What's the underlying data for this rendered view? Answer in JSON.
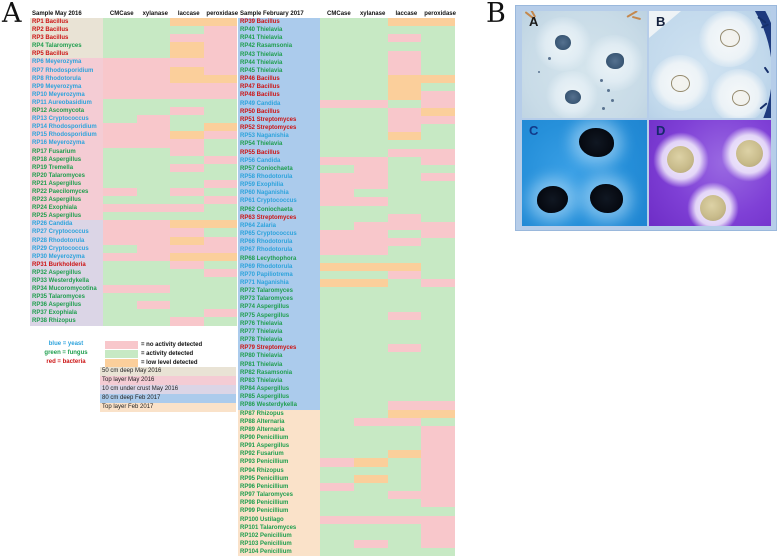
{
  "panel_a": {
    "label": "A",
    "colors": {
      "activity": "#c7e9c4",
      "no_activity": "#f8c7cb",
      "low_level": "#fbcf9b",
      "deep50_may": "#e9e3d5",
      "top_may": "#f4ccd4",
      "crust_may": "#dbd5e6",
      "deep80_feb": "#abcbec",
      "top_feb": "#fae2c9",
      "yeast": "#2da3dc",
      "fungus": "#1f9e4e",
      "bacteria": "#cc1414"
    },
    "tables": [
      {
        "header": {
          "sample": "Sample May 2016",
          "cols": [
            "CMCase",
            "xylanase",
            "laccase",
            "peroxidase"
          ]
        },
        "rows": [
          {
            "label": "RP1 Bacillus",
            "org": "bacteria",
            "layer": "deep50_may",
            "cells": "AALL"
          },
          {
            "label": "RP2 Bacillus",
            "org": "bacteria",
            "layer": "deep50_may",
            "cells": "AAAN"
          },
          {
            "label": "RP3 Bacillus",
            "org": "bacteria",
            "layer": "deep50_may",
            "cells": "AANN"
          },
          {
            "label": "RP4 Talaromyces",
            "org": "fungus",
            "layer": "deep50_may",
            "cells": "AALN"
          },
          {
            "label": "RP5 Bacillus",
            "org": "bacteria",
            "layer": "deep50_may",
            "cells": "AALN"
          },
          {
            "label": "RP6 Meyerozyma",
            "org": "yeast",
            "layer": "top_may",
            "cells": "NNNN"
          },
          {
            "label": "RP7 Rhodosporidium",
            "org": "yeast",
            "layer": "top_may",
            "cells": "NNLN"
          },
          {
            "label": "RP8 Rhodotorula",
            "org": "yeast",
            "layer": "top_may",
            "cells": "NNLL"
          },
          {
            "label": "RP9 Meyerozyma",
            "org": "yeast",
            "layer": "top_may",
            "cells": "NNNN"
          },
          {
            "label": "RP10 Meyerozyma",
            "org": "yeast",
            "layer": "top_may",
            "cells": "NNNN"
          },
          {
            "label": "RP11 Aureobasidium",
            "org": "yeast",
            "layer": "top_may",
            "cells": "AAAA"
          },
          {
            "label": "RP12 Ascomycota",
            "org": "fungus",
            "layer": "top_may",
            "cells": "AANA"
          },
          {
            "label": "RP13 Cryptococcus",
            "org": "yeast",
            "layer": "top_may",
            "cells": "ANAA"
          },
          {
            "label": "RP14 Rhodosporidium",
            "org": "yeast",
            "layer": "top_may",
            "cells": "NNAL"
          },
          {
            "label": "RP15 Rhodosporidium",
            "org": "yeast",
            "layer": "top_may",
            "cells": "NNLN"
          },
          {
            "label": "RP16 Meyerozyma",
            "org": "yeast",
            "layer": "top_may",
            "cells": "NNNA"
          },
          {
            "label": "RP17 Fusarium",
            "org": "fungus",
            "layer": "top_may",
            "cells": "AANA"
          },
          {
            "label": "RP18 Aspergillus",
            "org": "fungus",
            "layer": "top_may",
            "cells": "AAAN"
          },
          {
            "label": "RP19 Tremella",
            "org": "fungus",
            "layer": "top_may",
            "cells": "AANA"
          },
          {
            "label": "RP20 Talaromyces",
            "org": "fungus",
            "layer": "top_may",
            "cells": "AAAA"
          },
          {
            "label": "RP21 Aspergillus",
            "org": "fungus",
            "layer": "top_may",
            "cells": "AAAN"
          },
          {
            "label": "RP22 Paecilomyces",
            "org": "fungus",
            "layer": "top_may",
            "cells": "NANA"
          },
          {
            "label": "RP23 Aspergillus",
            "org": "fungus",
            "layer": "top_may",
            "cells": "AAAN"
          },
          {
            "label": "RP24 Exophiala",
            "org": "fungus",
            "layer": "top_may",
            "cells": "NNNA"
          },
          {
            "label": "RP25 Aspergillus",
            "org": "fungus",
            "layer": "top_may",
            "cells": "AAAA"
          },
          {
            "label": "RP26 Candida",
            "org": "yeast",
            "layer": "crust_may",
            "cells": "NNLL"
          },
          {
            "label": "RP27 Cryptococcus",
            "org": "yeast",
            "layer": "crust_may",
            "cells": "NNNA"
          },
          {
            "label": "RP28 Rhodotorula",
            "org": "yeast",
            "layer": "crust_may",
            "cells": "NNLN"
          },
          {
            "label": "RP29 Cryptococcus",
            "org": "yeast",
            "layer": "crust_may",
            "cells": "ANNN"
          },
          {
            "label": "RP30 Meyerozyma",
            "org": "yeast",
            "layer": "crust_may",
            "cells": "NNLL"
          },
          {
            "label": "RP31 Burkholderia",
            "org": "bacteria",
            "layer": "crust_may",
            "cells": "AANA"
          },
          {
            "label": "RP32 Aspergillus",
            "org": "fungus",
            "layer": "crust_may",
            "cells": "AAAN"
          },
          {
            "label": "RP33 Westerdykella",
            "org": "fungus",
            "layer": "crust_may",
            "cells": "AAAA"
          },
          {
            "label": "RP34 Mucoromycotina",
            "org": "fungus",
            "layer": "crust_may",
            "cells": "NNAA"
          },
          {
            "label": "RP35 Talaromyces",
            "org": "fungus",
            "layer": "crust_may",
            "cells": "AAAA"
          },
          {
            "label": "RP36 Aspergillus",
            "org": "fungus",
            "layer": "crust_may",
            "cells": "ANAA"
          },
          {
            "label": "RP37 Exophiala",
            "org": "fungus",
            "layer": "crust_may",
            "cells": "AAAN"
          },
          {
            "label": "RP38 Rhizopus",
            "org": "fungus",
            "layer": "crust_may",
            "cells": "AANA"
          }
        ]
      },
      {
        "header": {
          "sample": "Sample February 2017",
          "cols": [
            "CMCase",
            "xylanase",
            "laccase",
            "peroxidase"
          ]
        },
        "rows": [
          {
            "label": "RP39 Bacillus",
            "org": "bacteria",
            "layer": "deep80_feb",
            "cells": "AALL"
          },
          {
            "label": "RP40 Thielavia",
            "org": "fungus",
            "layer": "deep80_feb",
            "cells": "AAAA"
          },
          {
            "label": "RP41 Thielavia",
            "org": "fungus",
            "layer": "deep80_feb",
            "cells": "AANA"
          },
          {
            "label": "RP42 Rasamsonia",
            "org": "fungus",
            "layer": "deep80_feb",
            "cells": "AAAA"
          },
          {
            "label": "RP43 Thielavia",
            "org": "fungus",
            "layer": "deep80_feb",
            "cells": "AANA"
          },
          {
            "label": "RP44 Thielavia",
            "org": "fungus",
            "layer": "deep80_feb",
            "cells": "AANA"
          },
          {
            "label": "RP45 Thielavia",
            "org": "fungus",
            "layer": "deep80_feb",
            "cells": "AANA"
          },
          {
            "label": "RP46 Bacillus",
            "org": "bacteria",
            "layer": "deep80_feb",
            "cells": "AALL"
          },
          {
            "label": "RP47 Bacillus",
            "org": "bacteria",
            "layer": "deep80_feb",
            "cells": "AALA"
          },
          {
            "label": "RP48 Bacillus",
            "org": "bacteria",
            "layer": "deep80_feb",
            "cells": "AALN"
          },
          {
            "label": "RP49 Candida",
            "org": "yeast",
            "layer": "deep80_feb",
            "cells": "NNAN"
          },
          {
            "label": "RP50 Bacillus",
            "org": "bacteria",
            "layer": "deep80_feb",
            "cells": "AANL"
          },
          {
            "label": "RP51 Streptomyces",
            "org": "bacteria",
            "layer": "deep80_feb",
            "cells": "AANN"
          },
          {
            "label": "RP52 Streptomyces",
            "org": "bacteria",
            "layer": "deep80_feb",
            "cells": "AANA"
          },
          {
            "label": "RP53 Naganishia",
            "org": "yeast",
            "layer": "deep80_feb",
            "cells": "AALA"
          },
          {
            "label": "RP54 Thielavia",
            "org": "fungus",
            "layer": "deep80_feb",
            "cells": "AAAA"
          },
          {
            "label": "RP55 Bacillus",
            "org": "bacteria",
            "layer": "deep80_feb",
            "cells": "AANN"
          },
          {
            "label": "RP56 Candida",
            "org": "yeast",
            "layer": "deep80_feb",
            "cells": "NNAN"
          },
          {
            "label": "RP57 Coniochaeta",
            "org": "fungus",
            "layer": "deep80_feb",
            "cells": "ANAA"
          },
          {
            "label": "RP58 Rhodotorula",
            "org": "yeast",
            "layer": "deep80_feb",
            "cells": "NNAN"
          },
          {
            "label": "RP59 Exophilia",
            "org": "yeast",
            "layer": "deep80_feb",
            "cells": "NNAA"
          },
          {
            "label": "RP60 Naganishia",
            "org": "yeast",
            "layer": "deep80_feb",
            "cells": "NAAA"
          },
          {
            "label": "RP61 Cryptococcus",
            "org": "yeast",
            "layer": "deep80_feb",
            "cells": "NNAA"
          },
          {
            "label": "RP62 Coniochaeta",
            "org": "fungus",
            "layer": "deep80_feb",
            "cells": "AAAA"
          },
          {
            "label": "RP63 Streptomyces",
            "org": "bacteria",
            "layer": "deep80_feb",
            "cells": "AANA"
          },
          {
            "label": "RP64 Zalaria",
            "org": "yeast",
            "layer": "deep80_feb",
            "cells": "ANNN"
          },
          {
            "label": "RP65 Cryptococcus",
            "org": "yeast",
            "layer": "deep80_feb",
            "cells": "NNAN"
          },
          {
            "label": "RP66 Rhodotorula",
            "org": "yeast",
            "layer": "deep80_feb",
            "cells": "NNNA"
          },
          {
            "label": "RP67 Rhodotorula",
            "org": "yeast",
            "layer": "deep80_feb",
            "cells": "NNAA"
          },
          {
            "label": "RP68 Lecythophora",
            "org": "fungus",
            "layer": "deep80_feb",
            "cells": "AAAA"
          },
          {
            "label": "RP69 Rhodotorula",
            "org": "yeast",
            "layer": "deep80_feb",
            "cells": "LLLA"
          },
          {
            "label": "RP70 Papiliotrema",
            "org": "yeast",
            "layer": "deep80_feb",
            "cells": "AANA"
          },
          {
            "label": "RP71 Naganishia",
            "org": "yeast",
            "layer": "deep80_feb",
            "cells": "LLAN"
          },
          {
            "label": "RP72 Talaromyces",
            "org": "fungus",
            "layer": "deep80_feb",
            "cells": "AAAA"
          },
          {
            "label": "RP73 Talaromyces",
            "org": "fungus",
            "layer": "deep80_feb",
            "cells": "AAAA"
          },
          {
            "label": "RP74 Aspergillus",
            "org": "fungus",
            "layer": "deep80_feb",
            "cells": "AAAA"
          },
          {
            "label": "RP75 Aspergillus",
            "org": "fungus",
            "layer": "deep80_feb",
            "cells": "AANA"
          },
          {
            "label": "RP76 Thielavia",
            "org": "fungus",
            "layer": "deep80_feb",
            "cells": "AAAA"
          },
          {
            "label": "RP77 Thielavia",
            "org": "fungus",
            "layer": "deep80_feb",
            "cells": "AAAA"
          },
          {
            "label": "RP78 Thielavia",
            "org": "fungus",
            "layer": "deep80_feb",
            "cells": "AAAA"
          },
          {
            "label": "RP79 Streptomyces",
            "org": "bacteria",
            "layer": "deep80_feb",
            "cells": "AANA"
          },
          {
            "label": "RP80 Thielavia",
            "org": "fungus",
            "layer": "deep80_feb",
            "cells": "AAAA"
          },
          {
            "label": "RP81 Thielavia",
            "org": "fungus",
            "layer": "deep80_feb",
            "cells": "AAAA"
          },
          {
            "label": "RP82 Rasamsonia",
            "org": "fungus",
            "layer": "deep80_feb",
            "cells": "AAAA"
          },
          {
            "label": "RP83 Thielavia",
            "org": "fungus",
            "layer": "deep80_feb",
            "cells": "AAAA"
          },
          {
            "label": "RP84 Aspergillus",
            "org": "fungus",
            "layer": "deep80_feb",
            "cells": "AAAA"
          },
          {
            "label": "RP85 Aspergillus",
            "org": "fungus",
            "layer": "deep80_feb",
            "cells": "AAAA"
          },
          {
            "label": "RP86 Westerdykella",
            "org": "fungus",
            "layer": "deep80_feb",
            "cells": "AANN"
          },
          {
            "label": "RP87 Rhizopus",
            "org": "fungus",
            "layer": "top_feb",
            "cells": "AALL"
          },
          {
            "label": "RP88 Alternaria",
            "org": "fungus",
            "layer": "top_feb",
            "cells": "ANNA"
          },
          {
            "label": "RP89 Alternaria",
            "org": "fungus",
            "layer": "top_feb",
            "cells": "AAAN"
          },
          {
            "label": "RP90 Penicillium",
            "org": "fungus",
            "layer": "top_feb",
            "cells": "AAAN"
          },
          {
            "label": "RP91 Aspergillus",
            "org": "fungus",
            "layer": "top_feb",
            "cells": "AAAN"
          },
          {
            "label": "RP92 Fusarium",
            "org": "fungus",
            "layer": "top_feb",
            "cells": "AALN"
          },
          {
            "label": "RP93 Penicillium",
            "org": "fungus",
            "layer": "top_feb",
            "cells": "NLAN"
          },
          {
            "label": "RP94 Rhizopus",
            "org": "fungus",
            "layer": "top_feb",
            "cells": "AAAN"
          },
          {
            "label": "RP95 Penicillium",
            "org": "fungus",
            "layer": "top_feb",
            "cells": "ALAN"
          },
          {
            "label": "RP96 Penicillium",
            "org": "fungus",
            "layer": "top_feb",
            "cells": "NAAN"
          },
          {
            "label": "RP97 Talaromyces",
            "org": "fungus",
            "layer": "top_feb",
            "cells": "AANN"
          },
          {
            "label": "RP98 Penicillium",
            "org": "fungus",
            "layer": "top_feb",
            "cells": "AAAN"
          },
          {
            "label": "RP99 Penicillium",
            "org": "fungus",
            "layer": "top_feb",
            "cells": "AAAA"
          },
          {
            "label": "RP100 Ustilago",
            "org": "fungus",
            "layer": "top_feb",
            "cells": "NNNN"
          },
          {
            "label": "RP101 Talaromyces",
            "org": "fungus",
            "layer": "top_feb",
            "cells": "AAAN"
          },
          {
            "label": "RP102 Penicillium",
            "org": "fungus",
            "layer": "top_feb",
            "cells": "AAAN"
          },
          {
            "label": "RP103 Penicillium",
            "org": "fungus",
            "layer": "top_feb",
            "cells": "ANAN"
          },
          {
            "label": "RP104 Penicillium",
            "org": "fungus",
            "layer": "top_feb",
            "cells": "AAAA"
          }
        ]
      }
    ],
    "legend": {
      "organism_key": [
        {
          "text": "blue = yeast",
          "color_key": "yeast"
        },
        {
          "text": "green = fungus",
          "color_key": "fungus"
        },
        {
          "text": "red = bacteria",
          "color_key": "bacteria"
        }
      ],
      "activity_key": [
        {
          "swatch": "no_activity",
          "text": "= no activity detected"
        },
        {
          "swatch": "activity",
          "text": "= activity detected"
        },
        {
          "swatch": "low_level",
          "text": "= low level  detected"
        }
      ],
      "layer_key": [
        {
          "layer": "deep50_may",
          "text": "50 cm deep May 2016"
        },
        {
          "layer": "top_may",
          "text": "Top layer May 2016"
        },
        {
          "layer": "crust_may",
          "text": "10 cm under crust May 2016"
        },
        {
          "layer": "deep80_feb",
          "text": "80 cm deep Feb 2017"
        },
        {
          "layer": "top_feb",
          "text": "Top layer Feb 2017"
        }
      ]
    }
  },
  "panel_b": {
    "label": "B",
    "photos": [
      {
        "label": "A"
      },
      {
        "label": "B"
      },
      {
        "label": "C"
      },
      {
        "label": "D"
      }
    ]
  }
}
